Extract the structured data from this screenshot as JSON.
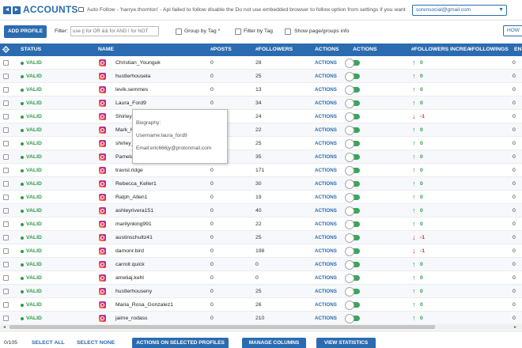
{
  "header": {
    "title": "ACCOUNTS",
    "back_glyph": "◄",
    "forward_glyph": "►",
    "notice": "Auto Follow - 'harrye.thornton' - Api failed to follow disable the Do not use embedded browser to follow option from settings if you want Jarvee",
    "account_selected": "sorensocial@gmail.com",
    "caret": "▼"
  },
  "toolbar": {
    "add_profile": "ADD PROFILE",
    "filter_label": "Filter:",
    "filter_placeholder": "use || for OR && for AND ! for NOT",
    "group_by_tag": "Group by Tag",
    "group_by_tag_suffix": "*",
    "filter_by_tag": "Filter by Tag",
    "show_page_info": "Show page/groups info",
    "how_button": "HOW"
  },
  "grid": {
    "columns": {
      "status": "STATUS",
      "name": "NAME",
      "posts": "#POSTS",
      "followers": "#FOLLOWERS",
      "actions": "ACTIONS",
      "actions2": "ACTIONS",
      "followers_increase": "#FOLLOWERS INCREA",
      "followings": "#FOLLOWINGS",
      "extra": "EN"
    },
    "rows": [
      {
        "status": "VALID",
        "name": "Christian_Younguk",
        "posts": "0",
        "followers": "28",
        "action": "ACTIONS",
        "arrow": "↑",
        "increase": "0",
        "followings": "0"
      },
      {
        "status": "VALID",
        "name": "hustlerhousela",
        "posts": "0",
        "followers": "25",
        "action": "ACTIONS",
        "arrow": "↑",
        "increase": "0",
        "followings": "0"
      },
      {
        "status": "VALID",
        "name": "levik.semmes",
        "posts": "0",
        "followers": "13",
        "action": "ACTIONS",
        "arrow": "↑",
        "increase": "0",
        "followings": "0"
      },
      {
        "status": "VALID",
        "name": "Laura_Ford9",
        "posts": "0",
        "followers": "34",
        "action": "ACTIONS",
        "arrow": "↑",
        "increase": "0",
        "followings": "0"
      },
      {
        "status": "VALID",
        "name": "Shirley_Brac",
        "posts": "0",
        "followers": "24",
        "action": "ACTIONS",
        "arrow": "↓",
        "increase": "-1",
        "followings": "0"
      },
      {
        "status": "VALID",
        "name": "Mark_Howa",
        "posts": "0",
        "followers": "22",
        "action": "ACTIONS",
        "arrow": "↑",
        "increase": "0",
        "followings": "0"
      },
      {
        "status": "VALID",
        "name": "shirley_harv",
        "posts": "0",
        "followers": "25",
        "action": "ACTIONS",
        "arrow": "↑",
        "increase": "0",
        "followings": "0"
      },
      {
        "status": "VALID",
        "name": "Pamela_Wo",
        "posts": "0",
        "followers": "35",
        "action": "ACTIONS",
        "arrow": "↑",
        "increase": "0",
        "followings": "0"
      },
      {
        "status": "VALID",
        "name": "travisl.ridge",
        "posts": "0",
        "followers": "171",
        "action": "ACTIONS",
        "arrow": "↑",
        "increase": "0",
        "followings": "0"
      },
      {
        "status": "VALID",
        "name": "Rebecca_Keller1",
        "posts": "0",
        "followers": "30",
        "action": "ACTIONS",
        "arrow": "↑",
        "increase": "0",
        "followings": "0"
      },
      {
        "status": "VALID",
        "name": "Ralph_Allen1",
        "posts": "0",
        "followers": "19",
        "action": "ACTIONS",
        "arrow": "↑",
        "increase": "0",
        "followings": "0"
      },
      {
        "status": "VALID",
        "name": "ashleyrivera151",
        "posts": "0",
        "followers": "40",
        "action": "ACTIONS",
        "arrow": "↑",
        "increase": "0",
        "followings": "0"
      },
      {
        "status": "VALID",
        "name": "marilynking991",
        "posts": "0",
        "followers": "22",
        "action": "ACTIONS",
        "arrow": "↑",
        "increase": "0",
        "followings": "0"
      },
      {
        "status": "VALID",
        "name": "austinschultz41",
        "posts": "0",
        "followers": "25",
        "action": "ACTIONS",
        "arrow": "↓",
        "increase": "-1",
        "followings": "0"
      },
      {
        "status": "VALID",
        "name": "damonr.bird",
        "posts": "0",
        "followers": "198",
        "action": "ACTIONS",
        "arrow": "↓",
        "increase": "-1",
        "followings": "0"
      },
      {
        "status": "VALID",
        "name": "carrolr.quick",
        "posts": "0",
        "followers": "0",
        "action": "ACTIONS",
        "arrow": "↑",
        "increase": "0",
        "followings": "0"
      },
      {
        "status": "VALID",
        "name": "ameliaj.kehl",
        "posts": "0",
        "followers": "0",
        "action": "ACTIONS",
        "arrow": "↑",
        "increase": "0",
        "followings": "0"
      },
      {
        "status": "VALID",
        "name": "hustlerhouseny",
        "posts": "0",
        "followers": "25",
        "action": "ACTIONS",
        "arrow": "↑",
        "increase": "0",
        "followings": "0"
      },
      {
        "status": "VALID",
        "name": "Maria_Rosa_Gonzalez1",
        "posts": "0",
        "followers": "26",
        "action": "ACTIONS",
        "arrow": "↑",
        "increase": "0",
        "followings": "0"
      },
      {
        "status": "VALID",
        "name": "jaime_rodass",
        "posts": "0",
        "followers": "210",
        "action": "ACTIONS",
        "arrow": "↑",
        "increase": "0",
        "followings": "0"
      }
    ]
  },
  "tooltip": {
    "biography": "Biography:",
    "username": "Username:laura_ford9",
    "email": "Email:eric666jy@protonmail.com"
  },
  "scrollbar": {
    "left_glyph": "◂",
    "right_glyph": "▸"
  },
  "footer": {
    "count": "0/105",
    "select_all": "SELECT ALL",
    "select_none": "SELECT NONE",
    "actions_selected": "ACTIONS ON SELECTED PROFILES",
    "manage_columns": "MANAGE COLUMNS",
    "view_statistics": "VIEW STATISTICS"
  },
  "colors": {
    "accent": "#2b6cb0",
    "valid": "#2e9c46",
    "decrease": "#d03030"
  }
}
